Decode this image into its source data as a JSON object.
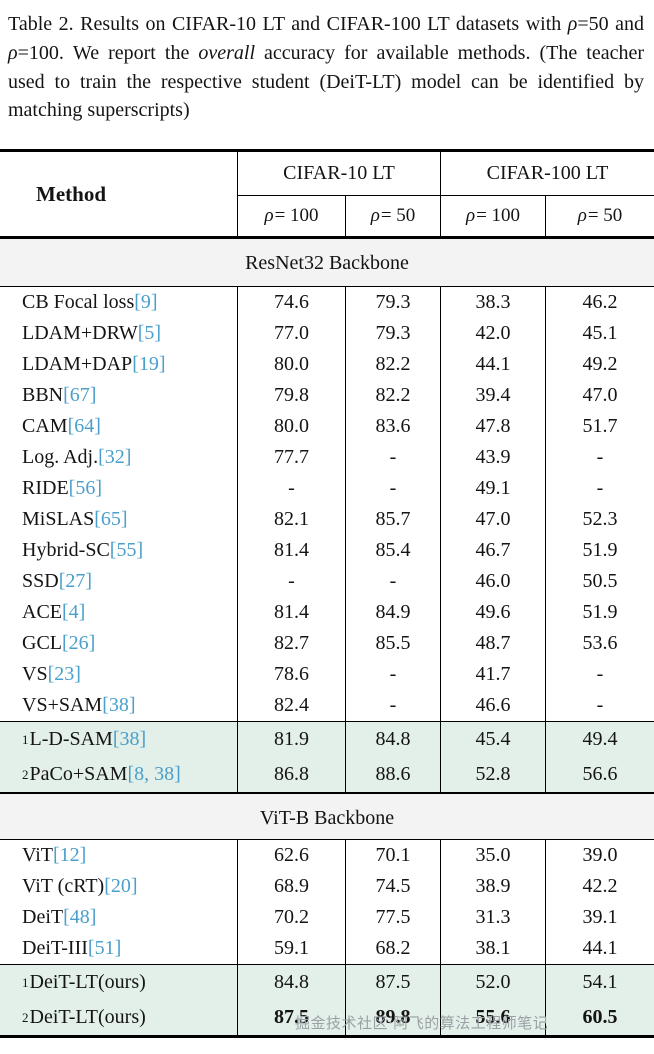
{
  "caption": {
    "t1": "Table 2.  Results on CIFAR-10 LT and CIFAR-100 LT datasets with ",
    "rho": "ρ",
    "t2": "=50 and ",
    "t3": "=100. We report the ",
    "em": "overall",
    "t4": " accuracy for available methods. (The teacher used to train the respective student (DeiT-LT) model can be identified by matching superscripts)"
  },
  "table": {
    "method_header": "Method",
    "rho": "ρ",
    "groups": [
      {
        "label": "CIFAR-10 LT"
      },
      {
        "label": "CIFAR-100 LT"
      }
    ],
    "subheaders": [
      " = 100",
      " = 50",
      " = 100",
      " = 50"
    ],
    "sections": [
      {
        "band": "ResNet32 Backbone",
        "rows": [
          {
            "sup": "",
            "method": "CB Focal loss ",
            "cite": "[9]",
            "values": [
              "74.6",
              "79.3",
              "38.3",
              "46.2"
            ],
            "highlight": false,
            "bold": false
          },
          {
            "sup": "",
            "method": "LDAM+DRW ",
            "cite": "[5]",
            "values": [
              "77.0",
              "79.3",
              "42.0",
              "45.1"
            ],
            "highlight": false,
            "bold": false
          },
          {
            "sup": "",
            "method": "LDAM+DAP ",
            "cite": "[19]",
            "values": [
              "80.0",
              "82.2",
              "44.1",
              "49.2"
            ],
            "highlight": false,
            "bold": false
          },
          {
            "sup": "",
            "method": "BBN ",
            "cite": "[67]",
            "values": [
              "79.8",
              "82.2",
              "39.4",
              "47.0"
            ],
            "highlight": false,
            "bold": false
          },
          {
            "sup": "",
            "method": "CAM ",
            "cite": "[64]",
            "values": [
              "80.0",
              "83.6",
              "47.8",
              "51.7"
            ],
            "highlight": false,
            "bold": false
          },
          {
            "sup": "",
            "method": "Log. Adj. ",
            "cite": "[32]",
            "values": [
              "77.7",
              "-",
              "43.9",
              "-"
            ],
            "highlight": false,
            "bold": false
          },
          {
            "sup": "",
            "method": "RIDE ",
            "cite": "[56]",
            "values": [
              "-",
              "-",
              "49.1",
              "-"
            ],
            "highlight": false,
            "bold": false
          },
          {
            "sup": "",
            "method": "MiSLAS ",
            "cite": "[65]",
            "values": [
              "82.1",
              "85.7",
              "47.0",
              "52.3"
            ],
            "highlight": false,
            "bold": false
          },
          {
            "sup": "",
            "method": "Hybrid-SC ",
            "cite": "[55]",
            "values": [
              "81.4",
              "85.4",
              "46.7",
              "51.9"
            ],
            "highlight": false,
            "bold": false
          },
          {
            "sup": "",
            "method": "SSD ",
            "cite": "[27]",
            "values": [
              "-",
              "-",
              "46.0",
              "50.5"
            ],
            "highlight": false,
            "bold": false
          },
          {
            "sup": "",
            "method": "ACE ",
            "cite": "[4]",
            "values": [
              "81.4",
              "84.9",
              "49.6",
              "51.9"
            ],
            "highlight": false,
            "bold": false
          },
          {
            "sup": "",
            "method": "GCL ",
            "cite": "[26]",
            "values": [
              "82.7",
              "85.5",
              "48.7",
              "53.6"
            ],
            "highlight": false,
            "bold": false
          },
          {
            "sup": "",
            "method": "VS ",
            "cite": "[23]",
            "values": [
              "78.6",
              "-",
              "41.7",
              "-"
            ],
            "highlight": false,
            "bold": false
          },
          {
            "sup": "",
            "method": "VS+SAM ",
            "cite": "[38]",
            "values": [
              "82.4",
              "-",
              "46.6",
              "-"
            ],
            "highlight": false,
            "bold": false
          },
          {
            "sup": "1",
            "method": "L-D-SAM ",
            "cite": "[38]",
            "values": [
              "81.9",
              "84.8",
              "45.4",
              "49.4"
            ],
            "highlight": true,
            "bold": false
          },
          {
            "sup": "2",
            "method": "PaCo+SAM",
            "cite": "[8, 38]",
            "values": [
              "86.8",
              "88.6",
              "52.8",
              "56.6"
            ],
            "highlight": true,
            "bold": false
          }
        ]
      },
      {
        "band": "ViT-B Backbone",
        "rows": [
          {
            "sup": "",
            "method": "ViT ",
            "cite": "[12]",
            "values": [
              "62.6",
              "70.1",
              "35.0",
              "39.0"
            ],
            "highlight": false,
            "bold": false
          },
          {
            "sup": "",
            "method": "ViT (cRT) ",
            "cite": "[20]",
            "values": [
              "68.9",
              "74.5",
              "38.9",
              "42.2"
            ],
            "highlight": false,
            "bold": false
          },
          {
            "sup": "",
            "method": "DeiT ",
            "cite": "[48]",
            "values": [
              "70.2",
              "77.5",
              "31.3",
              "39.1"
            ],
            "highlight": false,
            "bold": false
          },
          {
            "sup": "",
            "method": "DeiT-III ",
            "cite": "[51]",
            "values": [
              "59.1",
              "68.2",
              "38.1",
              "44.1"
            ],
            "highlight": false,
            "bold": false
          },
          {
            "sup": "1",
            "method": "DeiT-LT(ours)",
            "cite": "",
            "values": [
              "84.8",
              "87.5",
              "52.0",
              "54.1"
            ],
            "highlight": true,
            "bold": false
          },
          {
            "sup": "2",
            "method": "DeiT-LT(ours)",
            "cite": "",
            "values": [
              "87.5",
              "89.8",
              "55.6",
              "60.5"
            ],
            "highlight": true,
            "bold": true
          }
        ]
      }
    ]
  },
  "watermark": {
    "text": "掘金技术社区·阿飞的算法工程师笔记"
  },
  "colors": {
    "cite_blue": "#4A9FCB",
    "highlight_bg": "#e3efe9",
    "band_bg": "#f3f3f3",
    "rule_black": "#000000",
    "watermark_gray": "#9aa0a4"
  }
}
